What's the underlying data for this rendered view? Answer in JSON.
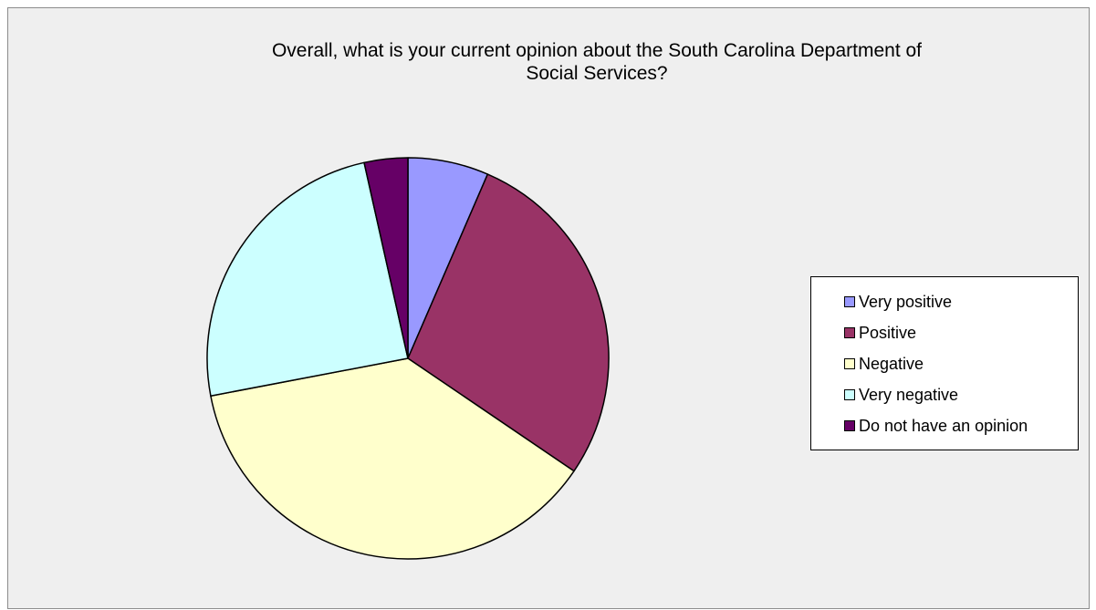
{
  "chart_data": {
    "type": "pie",
    "title_lines": [
      "Overall, what is your current opinion about the South Carolina Department of",
      "Social Services?"
    ],
    "categories": [
      "Very positive",
      "Positive",
      "Negative",
      "Very negative",
      "Do not have an opinion"
    ],
    "values": [
      6.5,
      28.0,
      37.5,
      24.5,
      3.5
    ],
    "colors": [
      "#9999ff",
      "#993366",
      "#ffffcc",
      "#ccffff",
      "#660066"
    ],
    "start_angle_deg": 0,
    "direction": "clockwise",
    "legend_position": "right"
  }
}
